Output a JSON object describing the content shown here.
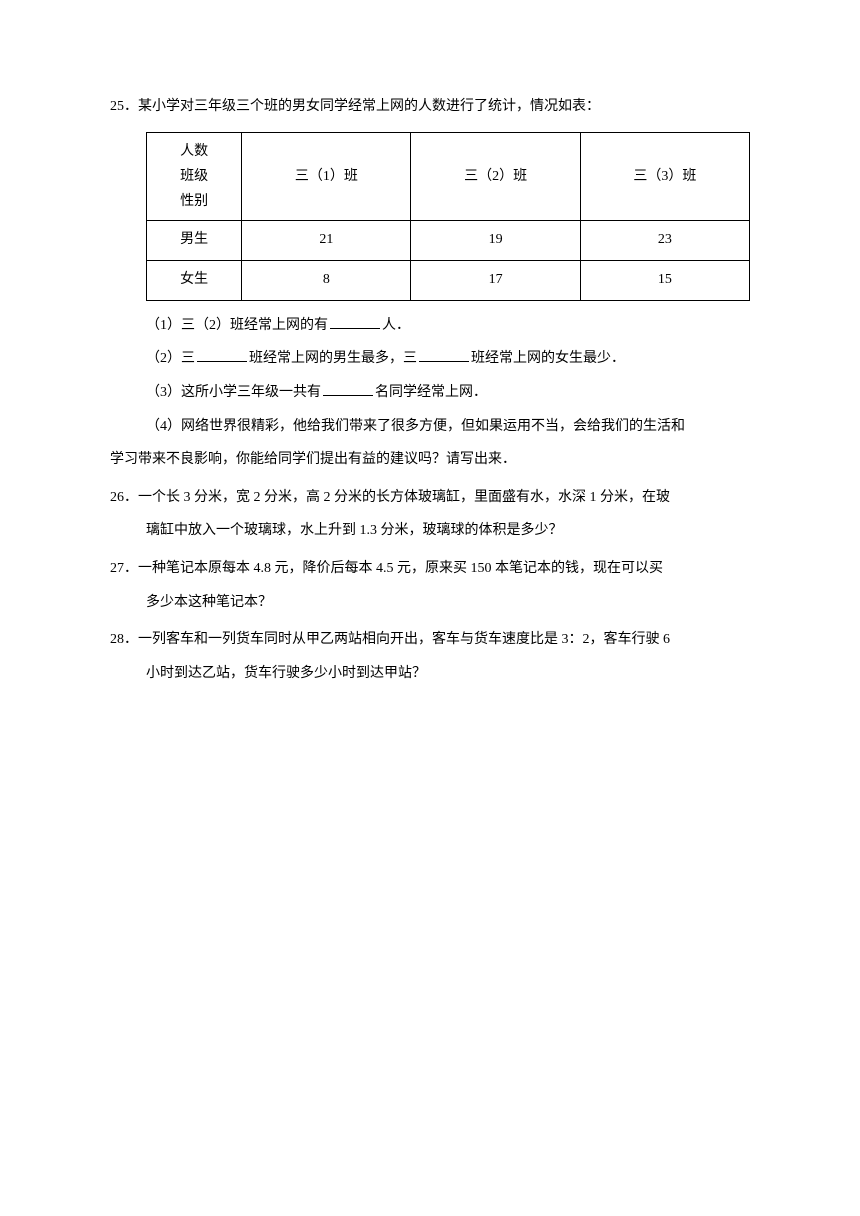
{
  "q25": {
    "number": "25．",
    "intro": "某小学对三年级三个班的男女同学经常上网的人数进行了统计，情况如表：",
    "table": {
      "header_cell": "人数<br>班级<br>性别",
      "columns": [
        "三（1）班",
        "三（2）班",
        "三（3）班"
      ],
      "rows": [
        {
          "label": "男生",
          "values": [
            "21",
            "19",
            "23"
          ]
        },
        {
          "label": "女生",
          "values": [
            "8",
            "17",
            "15"
          ]
        }
      ]
    },
    "sub1_a": "（1）三（2）班经常上网的有",
    "sub1_b": "人．",
    "sub2_a": "（2）三",
    "sub2_b": "班经常上网的男生最多，三",
    "sub2_c": "班经常上网的女生最少．",
    "sub3_a": "（3）这所小学三年级一共有",
    "sub3_b": "名同学经常上网．",
    "sub4_line1": "（4）网络世界很精彩，他给我们带来了很多方便，但如果运用不当，会给我们的生活和",
    "sub4_line2": "学习带来不良影响，你能给同学们提出有益的建议吗？请写出来．"
  },
  "q26": {
    "number": "26．",
    "line1": "一个长 3 分米，宽 2 分米，高 2 分米的长方体玻璃缸，里面盛有水，水深 1 分米，在玻",
    "line2": "璃缸中放入一个玻璃球，水上升到 1.3 分米，玻璃球的体积是多少？"
  },
  "q27": {
    "number": "27．",
    "line1": "一种笔记本原每本 4.8 元，降价后每本 4.5 元，原来买 150 本笔记本的钱，现在可以买",
    "line2": "多少本这种笔记本？"
  },
  "q28": {
    "number": "28．",
    "line1": "一列客车和一列货车同时从甲乙两站相向开出，客车与货车速度比是 3：2，客车行驶 6",
    "line2": "小时到达乙站，货车行驶多少小时到达甲站？"
  }
}
